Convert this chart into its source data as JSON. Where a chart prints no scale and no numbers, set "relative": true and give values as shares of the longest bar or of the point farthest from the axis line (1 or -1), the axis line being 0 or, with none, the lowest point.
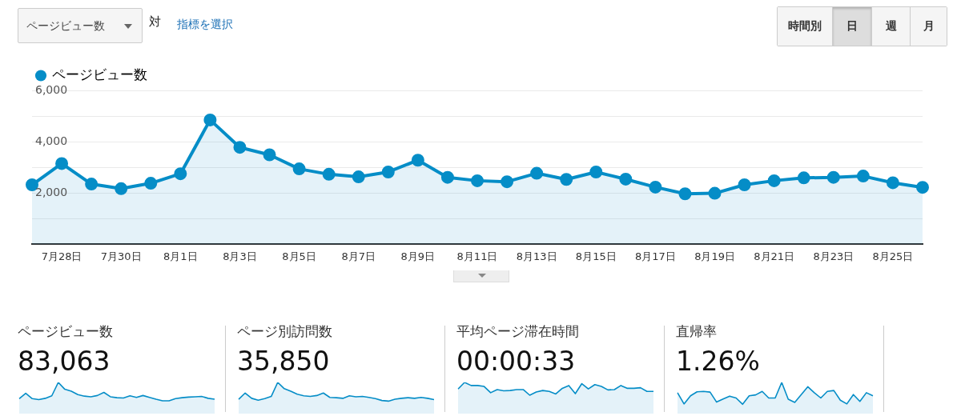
{
  "chart_data": [
    {
      "type": "area",
      "annotations": [
        "ページビュー数",
        "対",
        "指標を選択",
        "時間別",
        "日",
        "週",
        "月"
      ],
      "categories": [
        null,
        "7月28日",
        null,
        "7月30日",
        null,
        "8月1日",
        null,
        "8月3日",
        null,
        "8月5日",
        null,
        "8月7日",
        null,
        "8月9日",
        null,
        "8月11日",
        null,
        "8月13日",
        null,
        "8月15日",
        null,
        "8月17日",
        null,
        "8月19日",
        null,
        "8月21日",
        null,
        "8月23日",
        null,
        "8月25日",
        null
      ],
      "series": [
        {
          "name": "ページビュー数",
          "color": "#058dc7",
          "values": [
            2320,
            3150,
            2350,
            2170,
            2380,
            2750,
            4850,
            3780,
            3490,
            2940,
            2730,
            2630,
            2820,
            3280,
            2610,
            2480,
            2440,
            2770,
            2530,
            2820,
            2540,
            2230,
            1970,
            1990,
            2320,
            2480,
            2590,
            2610,
            2660,
            2400,
            2220
          ]
        }
      ],
      "ylim": [
        0,
        6000
      ],
      "yticks": [
        {
          "value": 0,
          "label": null
        },
        {
          "value": 1000,
          "label": null
        },
        {
          "value": 2000,
          "label": "2,000"
        },
        {
          "value": 3000,
          "label": null
        },
        {
          "value": 4000,
          "label": "4,000"
        },
        {
          "value": 5000,
          "label": null
        },
        {
          "value": 6000,
          "label": "6,000"
        }
      ],
      "grid": "y",
      "legend": "top left",
      "marker": "circle"
    },
    {
      "type": "area",
      "title": "ページビュー数",
      "subtitle": "83,063",
      "relative": true,
      "categories": [
        null,
        null,
        null,
        null,
        null,
        null,
        null,
        null,
        null,
        null,
        null,
        null,
        null,
        null,
        null,
        null,
        null,
        null,
        null,
        null,
        null,
        null,
        null,
        null,
        null,
        null,
        null,
        null,
        null,
        null,
        null
      ],
      "series": [
        {
          "color": "#058dc7",
          "values": [
            0.48,
            0.65,
            0.48,
            0.45,
            0.49,
            0.57,
            1,
            0.78,
            0.72,
            0.61,
            0.56,
            0.54,
            0.58,
            0.68,
            0.54,
            0.51,
            0.5,
            0.57,
            0.52,
            0.58,
            0.52,
            0.46,
            0.41,
            0.41,
            0.48,
            0.51,
            0.53,
            0.54,
            0.55,
            0.49,
            0.46
          ]
        }
      ]
    },
    {
      "type": "area",
      "title": "ページ別訪問数",
      "subtitle": "35,850",
      "relative": true,
      "categories": [
        null,
        null,
        null,
        null,
        null,
        null,
        null,
        null,
        null,
        null,
        null,
        null,
        null,
        null,
        null,
        null,
        null,
        null,
        null,
        null,
        null,
        null,
        null,
        null,
        null,
        null,
        null,
        null,
        null,
        null,
        null
      ],
      "series": [
        {
          "color": "#058dc7",
          "values": [
            0.46,
            0.66,
            0.49,
            0.43,
            0.48,
            0.55,
            1,
            0.8,
            0.72,
            0.62,
            0.57,
            0.55,
            0.58,
            0.66,
            0.52,
            0.51,
            0.49,
            0.57,
            0.54,
            0.55,
            0.52,
            0.48,
            0.42,
            0.4,
            0.46,
            0.49,
            0.51,
            0.49,
            0.52,
            0.49,
            0.45
          ]
        }
      ]
    },
    {
      "type": "area",
      "title": "平均ページ滞在時間",
      "subtitle": "00:00:33",
      "relative": true,
      "categories": [
        null,
        null,
        null,
        null,
        null,
        null,
        null,
        null,
        null,
        null,
        null,
        null,
        null,
        null,
        null,
        null,
        null,
        null,
        null,
        null,
        null,
        null,
        null,
        null,
        null,
        null,
        null,
        null,
        null,
        null,
        null
      ],
      "series": [
        {
          "color": "#058dc7",
          "values": [
            0.79,
            1,
            0.9,
            0.9,
            0.87,
            0.67,
            0.77,
            0.73,
            0.74,
            0.77,
            0.77,
            0.59,
            0.69,
            0.74,
            0.71,
            0.63,
            0.81,
            0.9,
            0.64,
            0.96,
            0.79,
            0.93,
            0.87,
            0.76,
            0.77,
            0.9,
            0.81,
            0.81,
            0.83,
            0.71,
            0.71
          ]
        }
      ]
    },
    {
      "type": "area",
      "title": "直帰率",
      "subtitle": "1.26%",
      "relative": true,
      "categories": [
        null,
        null,
        null,
        null,
        null,
        null,
        null,
        null,
        null,
        null,
        null,
        null,
        null,
        null,
        null,
        null,
        null,
        null,
        null,
        null,
        null,
        null,
        null,
        null,
        null,
        null,
        null,
        null,
        null,
        null,
        null
      ],
      "series": [
        {
          "color": "#058dc7",
          "values": [
            0.67,
            0.31,
            0.57,
            0.7,
            0.71,
            0.69,
            0.37,
            0.47,
            0.56,
            0.5,
            0.3,
            0.57,
            0.6,
            0.71,
            0.5,
            0.5,
            1,
            0.46,
            0.36,
            0.61,
            0.86,
            0.67,
            0.5,
            0.71,
            0.74,
            0.43,
            0.31,
            0.61,
            0.39,
            0.67,
            0.57
          ]
        }
      ]
    }
  ]
}
